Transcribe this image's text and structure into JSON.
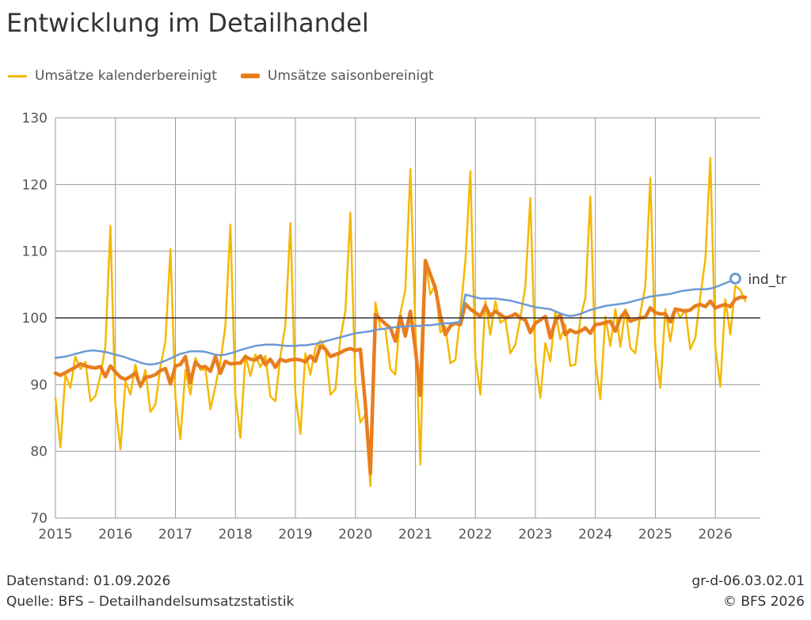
{
  "title": "Entwicklung im Detailhandel",
  "legend": [
    {
      "label": "Umsätze kalenderbereinigt",
      "color": "#f5b800"
    },
    {
      "label": "Umsätze saisonbereinigt",
      "color": "#e87d1e"
    }
  ],
  "footer": {
    "stand": "Datenstand: 01.09.2026",
    "quelle": "Quelle: BFS – Detailhandelsumsatzstatistik",
    "code": "gr-d-06.03.02.01",
    "copyright": "© BFS 2026"
  },
  "chart_data": {
    "type": "line",
    "title": "Entwicklung im Detailhandel",
    "xlabel": "",
    "ylabel": "",
    "ylim": [
      70,
      130
    ],
    "yticks": [
      70,
      80,
      90,
      100,
      110,
      120,
      130
    ],
    "xlim": [
      2015,
      2026.75
    ],
    "xticks": [
      "2015",
      "2016",
      "2017",
      "2018",
      "2019",
      "2020",
      "2021",
      "2022",
      "2023",
      "2024",
      "2025",
      "2026"
    ],
    "grid": true,
    "reference_line": 100,
    "legend_position": "top-left",
    "series": [
      {
        "name": "Umsätze kalenderbereinigt",
        "color": "#f5b800",
        "x_start": 2015,
        "x_step_months": 1,
        "values": [
          88.0,
          80.6,
          91.5,
          89.5,
          94.2,
          92.3,
          93.4,
          87.5,
          88.3,
          91.3,
          95.8,
          113.8,
          87.0,
          80.3,
          90.5,
          88.5,
          93.0,
          89.5,
          92.2,
          85.9,
          87.0,
          92.7,
          96.5,
          110.3,
          88.0,
          81.8,
          92.2,
          88.5,
          94.0,
          92.2,
          92.3,
          86.3,
          89.8,
          93.4,
          98.8,
          114.0,
          88.3,
          82.0,
          94.4,
          91.3,
          94.5,
          92.6,
          94.3,
          88.2,
          87.5,
          94.2,
          99.0,
          114.2,
          88.5,
          82.6,
          94.7,
          91.5,
          95.5,
          96.6,
          95.5,
          88.5,
          89.3,
          97.0,
          101.0,
          115.8,
          90.0,
          84.3,
          85.5,
          74.8,
          102.3,
          98.4,
          98.3,
          92.3,
          91.5,
          100.7,
          104.2,
          122.3,
          98.5,
          78.0,
          108.5,
          103.5,
          105.0,
          97.8,
          98.7,
          93.2,
          93.7,
          100.7,
          108.5,
          122.0,
          94.0,
          88.5,
          102.5,
          97.5,
          102.5,
          99.3,
          99.8,
          94.7,
          96.0,
          100.0,
          104.7,
          118.0,
          93.5,
          88.0,
          96.2,
          93.5,
          101.0,
          96.8,
          99.0,
          92.8,
          93.0,
          100.0,
          103.0,
          118.2,
          93.5,
          87.8,
          100.2,
          95.8,
          101.3,
          95.7,
          101.3,
          95.5,
          94.7,
          100.7,
          104.7,
          121.0,
          95.5,
          89.5,
          101.3,
          96.5,
          101.5,
          100.0,
          101.3,
          95.3,
          97.0,
          103.3,
          108.8,
          124.0,
          95.6,
          89.7,
          102.8,
          97.5,
          104.8,
          104.2,
          102.5
        ]
      },
      {
        "name": "Umsätze saisonbereinigt",
        "color": "#e87d1e",
        "x_start": 2015,
        "x_step_months": 1,
        "values": [
          91.7,
          91.4,
          91.8,
          92.2,
          92.6,
          93.1,
          92.8,
          92.6,
          92.5,
          92.7,
          91.2,
          92.8,
          91.9,
          91.1,
          90.8,
          91.2,
          91.8,
          89.8,
          91.1,
          91.2,
          91.5,
          92.1,
          92.4,
          90.1,
          92.8,
          93.0,
          94.2,
          90.3,
          93.4,
          92.6,
          92.7,
          92.0,
          94.2,
          91.7,
          93.5,
          93.1,
          93.2,
          93.2,
          94.2,
          93.8,
          93.7,
          94.3,
          93.0,
          93.8,
          92.6,
          93.8,
          93.5,
          93.7,
          93.8,
          93.7,
          93.4,
          94.3,
          93.5,
          95.8,
          95.3,
          94.2,
          94.5,
          94.8,
          95.2,
          95.4,
          95.1,
          95.3,
          87.0,
          76.7,
          100.5,
          99.8,
          99.1,
          98.5,
          96.5,
          100.2,
          97.3,
          101.0,
          95.3,
          88.4,
          108.6,
          106.5,
          104.5,
          100.3,
          97.5,
          98.8,
          99.2,
          99.0,
          102.1,
          101.3,
          100.8,
          100.2,
          101.8,
          100.3,
          101.0,
          100.5,
          100.0,
          100.2,
          100.6,
          100.0,
          99.7,
          97.8,
          99.2,
          99.7,
          100.2,
          97.0,
          99.5,
          100.5,
          97.5,
          98.2,
          97.8,
          98.0,
          98.5,
          97.7,
          99.0,
          99.1,
          99.3,
          99.5,
          98.0,
          100.0,
          101.0,
          99.5,
          99.8,
          100.0,
          100.1,
          101.5,
          100.8,
          100.6,
          100.6,
          99.4,
          101.3,
          101.2,
          101.0,
          101.2,
          101.8,
          102.0,
          101.7,
          102.5,
          101.5,
          101.8,
          102.0,
          101.7,
          102.8,
          103.1,
          103.1
        ]
      },
      {
        "name": "ind_tr",
        "color": "#6b99d6",
        "x_start": 2015,
        "x_step_months": 1,
        "end_marker": true,
        "values": [
          94.0,
          94.1,
          94.2,
          94.4,
          94.6,
          94.8,
          95.0,
          95.1,
          95.1,
          95.0,
          94.9,
          94.7,
          94.5,
          94.3,
          94.1,
          93.8,
          93.6,
          93.3,
          93.1,
          93.0,
          93.1,
          93.3,
          93.6,
          93.9,
          94.3,
          94.6,
          94.8,
          95.0,
          95.0,
          95.0,
          94.9,
          94.7,
          94.5,
          94.4,
          94.5,
          94.7,
          94.9,
          95.2,
          95.4,
          95.6,
          95.8,
          95.9,
          96.0,
          96.0,
          96.0,
          95.9,
          95.8,
          95.8,
          95.8,
          95.9,
          95.9,
          96.0,
          96.1,
          96.3,
          96.5,
          96.7,
          96.9,
          97.1,
          97.3,
          97.5,
          97.7,
          97.8,
          97.9,
          98.0,
          98.2,
          98.3,
          98.4,
          98.5,
          98.6,
          98.7,
          98.7,
          98.8,
          98.8,
          98.8,
          98.9,
          98.9,
          99.0,
          99.1,
          99.2,
          99.2,
          99.3,
          99.4,
          103.5,
          103.3,
          103.1,
          102.9,
          102.9,
          102.9,
          102.9,
          102.8,
          102.7,
          102.6,
          102.4,
          102.2,
          102.0,
          101.8,
          101.6,
          101.5,
          101.4,
          101.3,
          101.0,
          100.7,
          100.4,
          100.3,
          100.4,
          100.6,
          100.9,
          101.2,
          101.4,
          101.6,
          101.8,
          101.9,
          102.0,
          102.1,
          102.2,
          102.4,
          102.6,
          102.8,
          103.0,
          103.2,
          103.3,
          103.4,
          103.5,
          103.6,
          103.8,
          104.0,
          104.1,
          104.2,
          104.3,
          104.3,
          104.3,
          104.4,
          104.6,
          104.9,
          105.2,
          105.5,
          105.9
        ]
      }
    ]
  }
}
